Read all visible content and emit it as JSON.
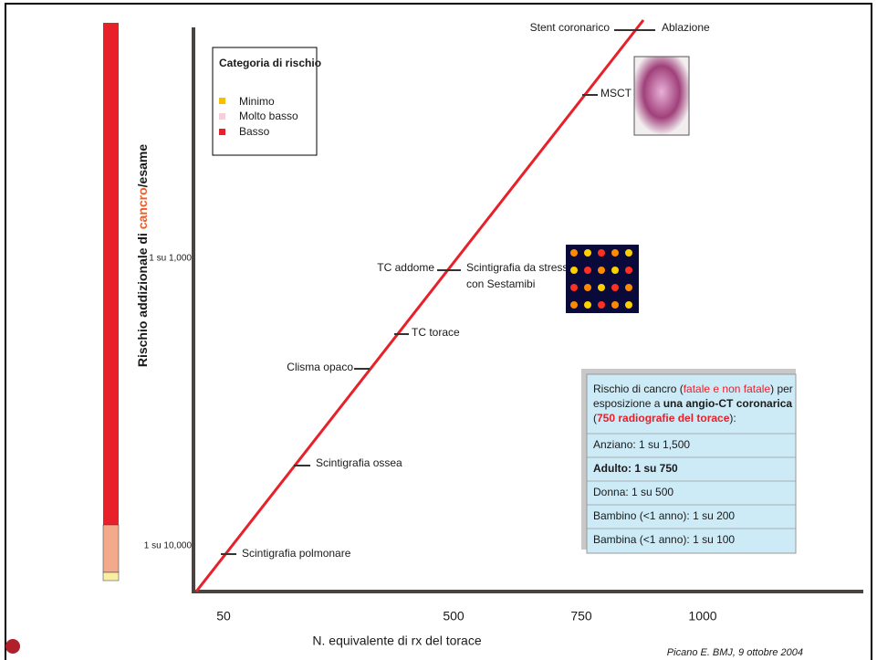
{
  "y_axis": {
    "label_parts": [
      "Rischio addizionale di ",
      "cancro",
      "/esame"
    ],
    "ticks": [
      "1 su 1,000",
      "1 su 10,000"
    ]
  },
  "x_axis": {
    "label": "N. equivalente di rx del torace",
    "ticks": [
      "50",
      "500",
      "750",
      "1000"
    ]
  },
  "legend": {
    "title": "Categoria di rischio",
    "items": [
      "Minimo",
      "Molto basso",
      "Basso"
    ]
  },
  "exams": [
    {
      "label": "Scintigrafia polmonare"
    },
    {
      "label": "Scintigrafia ossea"
    },
    {
      "label": "Clisma opaco"
    },
    {
      "label": "TC torace"
    },
    {
      "label": "TC addome"
    },
    {
      "label": [
        "Scintigrafia da stress",
        "con Sestamibi"
      ]
    },
    {
      "label": "MSCT"
    },
    {
      "label": "Stent coronarico"
    },
    {
      "label": "Ablazione"
    }
  ],
  "info_box": {
    "intro": [
      [
        "Rischio di cancro (",
        "fatale e non fatale",
        ") per"
      ],
      [
        "esposizione a ",
        "una angio-CT coronarica"
      ],
      [
        "(",
        "750 radiografie del torace",
        "):"
      ]
    ],
    "rows": [
      "Anziano: 1 su 1,500",
      "Adulto: 1 su 750",
      "Donna: 1 su 500",
      "Bambino (<1 anno): 1 su 200",
      "Bambina (<1 anno): 1 su 100"
    ]
  },
  "citation": "Picano E. BMJ, 9 ottobre 2004"
}
